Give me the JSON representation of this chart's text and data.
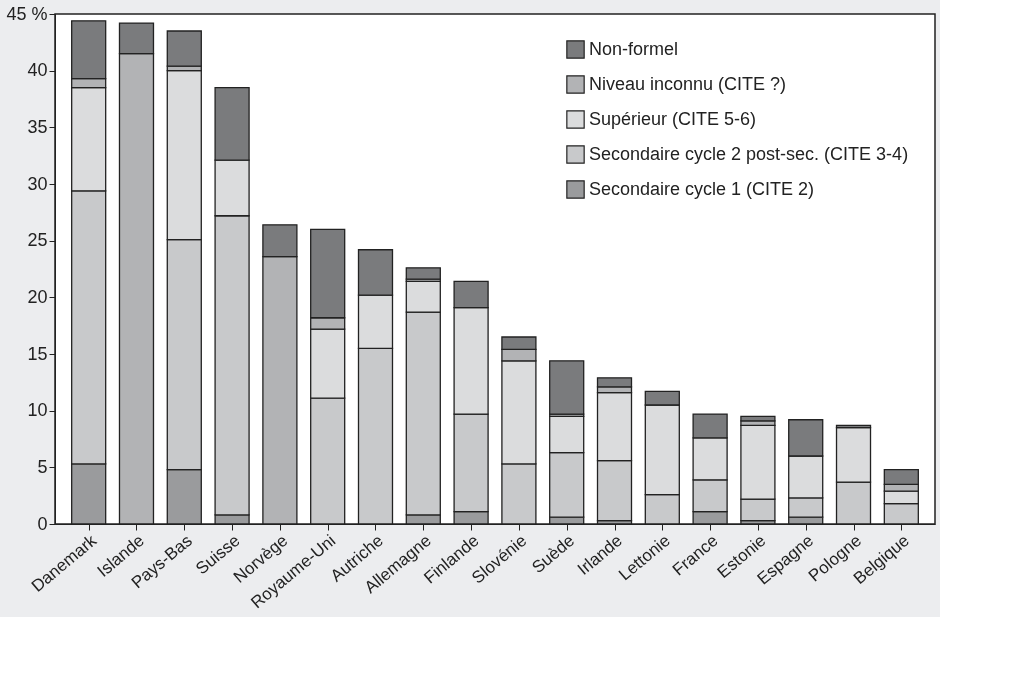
{
  "chart_data": {
    "type": "bar",
    "stacked": true,
    "legend": "top right",
    "grid": false,
    "categories": [
      "Danemark",
      "Islande",
      "Pays-Bas",
      "Suisse",
      "Norvège",
      "Royaume-Uni",
      "Autriche",
      "Allemagne",
      "Finlande",
      "Slovénie",
      "Suède",
      "Irlande",
      "Lettonie",
      "France",
      "Estonie",
      "Espagne",
      "Pologne",
      "Belgique"
    ],
    "series": [
      {
        "name": "Secondaire cycle 1 (CITE 2)",
        "color": "#9a9b9d",
        "values": [
          5.3,
          0,
          4.8,
          0.8,
          0,
          0,
          0,
          0.8,
          1.1,
          0,
          0.6,
          0.3,
          null,
          1.1,
          0.3,
          0.6,
          null,
          0
        ]
      },
      {
        "name": "Secondaire cycle 2 post-sec. (CITE 3-4)",
        "color": "#c8c9cb",
        "values": [
          24.1,
          0,
          20.3,
          26.4,
          0,
          11.1,
          15.5,
          17.9,
          8.6,
          5.3,
          5.7,
          5.3,
          2.6,
          2.8,
          1.9,
          1.7,
          3.7,
          1.8
        ]
      },
      {
        "name": "Supérieur  (CITE 5-6)",
        "color": "#dbdcdd",
        "values": [
          9.1,
          0,
          14.9,
          4.9,
          0,
          6.1,
          4.7,
          2.7,
          9.4,
          9.1,
          3.2,
          6.0,
          7.9,
          3.7,
          6.5,
          3.7,
          4.8,
          1.1
        ]
      },
      {
        "name": "Niveau inconnu (CITE ?)",
        "color": "#b2b3b5",
        "values": [
          0.8,
          41.5,
          0.4,
          0,
          23.6,
          1.0,
          0,
          0.2,
          0,
          1.0,
          0.2,
          0.5,
          0,
          0,
          0.4,
          0,
          0,
          0.6
        ]
      },
      {
        "name": "Non-formel",
        "color": "#7a7b7d",
        "values": [
          5.1,
          2.7,
          3.1,
          6.4,
          2.8,
          7.8,
          4.0,
          1.0,
          2.3,
          1.1,
          4.7,
          0.8,
          1.2,
          2.1,
          0.4,
          3.2,
          0.2,
          1.3
        ]
      }
    ],
    "ylim": [
      0,
      45
    ],
    "yticks": [
      0,
      5,
      10,
      15,
      20,
      25,
      30,
      35,
      40,
      {
        "value": 45,
        "label": "45 %"
      }
    ]
  }
}
